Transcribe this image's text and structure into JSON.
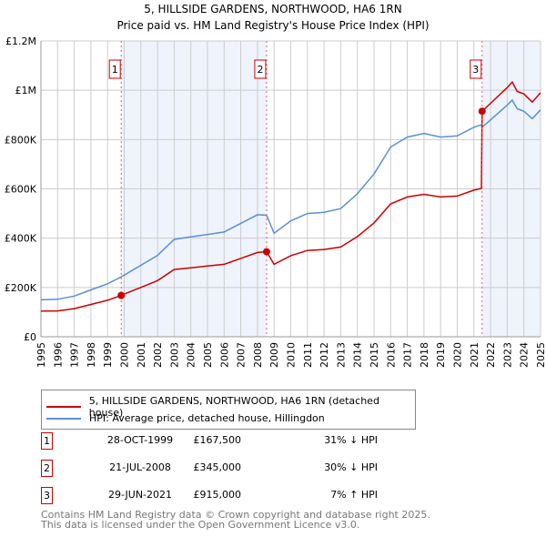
{
  "chart_data": {
    "type": "line",
    "title": "5, HILLSIDE GARDENS, NORTHWOOD, HA6 1RN",
    "subtitle": "Price paid vs. HM Land Registry's House Price Index (HPI)",
    "ylim": [
      0,
      1200000
    ],
    "xlim": [
      1995,
      2025
    ],
    "yticks": [
      {
        "v": 0,
        "label": "£0"
      },
      {
        "v": 200000,
        "label": "£200K"
      },
      {
        "v": 400000,
        "label": "£400K"
      },
      {
        "v": 600000,
        "label": "£600K"
      },
      {
        "v": 800000,
        "label": "£800K"
      },
      {
        "v": 1000000,
        "label": "£1M"
      },
      {
        "v": 1200000,
        "label": "£1.2M"
      }
    ],
    "xticks": [
      1995,
      1996,
      1997,
      1998,
      1999,
      2000,
      2001,
      2002,
      2003,
      2004,
      2005,
      2006,
      2007,
      2008,
      2009,
      2010,
      2011,
      2012,
      2013,
      2014,
      2015,
      2016,
      2017,
      2018,
      2019,
      2020,
      2021,
      2022,
      2023,
      2024,
      2025
    ],
    "grid": true,
    "x": [
      1995,
      1996,
      1997,
      1998,
      1999,
      1999.82,
      2000,
      2001,
      2002,
      2003,
      2004,
      2005,
      2006,
      2007,
      2008,
      2008.55,
      2009,
      2010,
      2011,
      2012,
      2013,
      2014,
      2015,
      2016,
      2017,
      2018,
      2019,
      2020,
      2021,
      2021.45,
      2021.49,
      2022,
      2023,
      2023.3,
      2023.6,
      2024,
      2024.5,
      2025
    ],
    "series": [
      {
        "name": "5, HILLSIDE GARDENS, NORTHWOOD, HA6 1RN (detached house)",
        "color": "#cc0000",
        "values": [
          104000,
          105000,
          114000,
          131000,
          148000,
          167500,
          173000,
          200000,
          228000,
          273000,
          280000,
          287000,
          294000,
          318000,
          342000,
          345000,
          294000,
          329000,
          350000,
          354000,
          364000,
          406000,
          462000,
          539000,
          567000,
          578000,
          567000,
          571000,
          595000,
          602000,
          915000,
          947000,
          1011000,
          1033000,
          995000,
          985000,
          952000,
          990000
        ]
      },
      {
        "name": "HPI: Average price, detached house, Hillingdon",
        "color": "#5b8fd6",
        "values": [
          150000,
          152000,
          165000,
          190000,
          215000,
          243000,
          250000,
          290000,
          330000,
          395000,
          405000,
          415000,
          425000,
          460000,
          495000,
          493000,
          420000,
          470000,
          500000,
          505000,
          520000,
          580000,
          660000,
          770000,
          810000,
          825000,
          810000,
          815000,
          850000,
          860000,
          850000,
          880000,
          940000,
          960000,
          925000,
          915000,
          885000,
          920000
        ]
      }
    ],
    "sales": [
      {
        "id": "1",
        "x": 1999.82,
        "price": 167500,
        "date": "28-OCT-1999",
        "price_label": "£167,500",
        "hpi": "31% ↓ HPI"
      },
      {
        "id": "2",
        "x": 2008.55,
        "price": 345000,
        "date": "21-JUL-2008",
        "price_label": "£345,000",
        "hpi": "30% ↓ HPI"
      },
      {
        "id": "3",
        "x": 2021.49,
        "price": 915000,
        "date": "29-JUN-2021",
        "price_label": "£915,000",
        "hpi": "7% ↑ HPI"
      }
    ],
    "footer": [
      "Contains HM Land Registry data © Crown copyright and database right 2025.",
      "This data is licensed under the Open Government Licence v3.0."
    ]
  }
}
